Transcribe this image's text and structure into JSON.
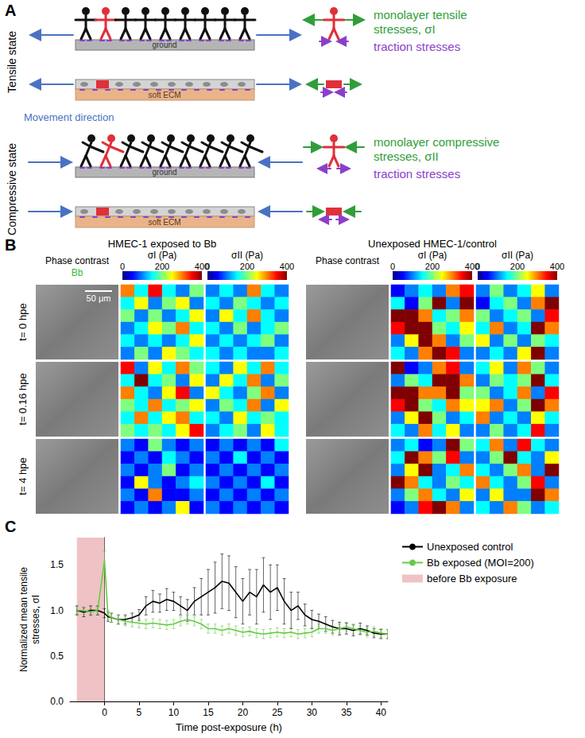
{
  "panel_a": {
    "label": "A",
    "movement_label": "Movement direction",
    "states": [
      {
        "name": "Tensile state",
        "ground": "ground",
        "ecm": "soft ECM",
        "stress_lines": [
          "monolayer tensile",
          "stresses, σI"
        ],
        "traction": "traction stresses"
      },
      {
        "name": "Compressive state",
        "ground": "ground",
        "ecm": "soft ECM",
        "stress_lines": [
          "monolayer compressive",
          "stresses, σII"
        ],
        "traction": "traction stresses"
      }
    ]
  },
  "panel_b": {
    "label": "B",
    "colorbar": {
      "range": [
        0,
        400
      ],
      "ticks": [
        0,
        200,
        400
      ]
    },
    "scale_bar": "50 μm",
    "times": [
      "t= 0 hpe",
      "t= 0.16 hpe",
      "t= 4 hpe"
    ],
    "conditions": [
      {
        "title": "HMEC-1 exposed to Bb",
        "image_label": "Phase contrast",
        "image_sublabel": "Bb",
        "stress_labels": [
          "σI (Pa)",
          "σII (Pa)"
        ],
        "maps": [
          [
            [
              [
                300,
                150,
                350,
                150,
                100,
                200
              ],
              [
                150,
                250,
                100,
                200,
                250,
                100
              ],
              [
                200,
                100,
                200,
                100,
                150,
                250
              ],
              [
                100,
                150,
                250,
                200,
                300,
                150
              ],
              [
                150,
                100,
                150,
                100,
                150,
                250
              ],
              [
                100,
                200,
                100,
                250,
                200,
                150
              ]
            ],
            [
              [
                100,
                150,
                100,
                300,
                150,
                100
              ],
              [
                150,
                100,
                200,
                150,
                100,
                150
              ],
              [
                100,
                250,
                150,
                300,
                150,
                100
              ],
              [
                150,
                100,
                200,
                100,
                150,
                200
              ],
              [
                100,
                150,
                100,
                150,
                200,
                100
              ],
              [
                150,
                100,
                150,
                100,
                100,
                150
              ]
            ]
          ],
          [
            [
              [
                350,
                100,
                250,
                150,
                300,
                200
              ],
              [
                150,
                400,
                150,
                200,
                100,
                250
              ],
              [
                300,
                150,
                100,
                250,
                350,
                100
              ],
              [
                200,
                150,
                300,
                150,
                200,
                250
              ],
              [
                150,
                300,
                150,
                250,
                300,
                150
              ],
              [
                200,
                150,
                200,
                150,
                250,
                350
              ]
            ],
            [
              [
                150,
                100,
                250,
                150,
                300,
                150
              ],
              [
                100,
                250,
                150,
                300,
                100,
                200
              ],
              [
                250,
                150,
                100,
                200,
                300,
                100
              ],
              [
                100,
                200,
                150,
                300,
                100,
                250
              ],
              [
                150,
                100,
                250,
                150,
                200,
                150
              ],
              [
                100,
                150,
                200,
                100,
                250,
                150
              ]
            ]
          ],
          [
            [
              [
                100,
                50,
                200,
                100,
                50,
                100
              ],
              [
                50,
                100,
                50,
                150,
                100,
                50
              ],
              [
                100,
                50,
                100,
                200,
                50,
                100
              ],
              [
                50,
                250,
                100,
                50,
                100,
                150
              ],
              [
                100,
                50,
                300,
                50,
                50,
                100
              ],
              [
                50,
                100,
                50,
                100,
                250,
                50
              ]
            ],
            [
              [
                50,
                100,
                50,
                100,
                50,
                150
              ],
              [
                100,
                50,
                150,
                50,
                100,
                50
              ],
              [
                50,
                100,
                50,
                100,
                50,
                100
              ],
              [
                100,
                50,
                100,
                50,
                150,
                50
              ],
              [
                50,
                100,
                50,
                100,
                50,
                100
              ],
              [
                100,
                50,
                100,
                50,
                100,
                50
              ]
            ]
          ]
        ]
      },
      {
        "title": "Unexposed HMEC-1/control",
        "image_label": "Phase contrast",
        "stress_labels": [
          "σI (Pa)",
          "σII (Pa)"
        ],
        "maps": [
          [
            [
              [
                50,
                100,
                150,
                100,
                300,
                350
              ],
              [
                150,
                50,
                200,
                400,
                100,
                400
              ],
              [
                400,
                400,
                300,
                150,
                200,
                300
              ],
              [
                350,
                400,
                400,
                200,
                150,
                250
              ],
              [
                100,
                250,
                400,
                300,
                100,
                200
              ],
              [
                150,
                100,
                300,
                400,
                350,
                100
              ]
            ],
            [
              [
                100,
                200,
                100,
                150,
                250,
                100
              ],
              [
                50,
                150,
                200,
                100,
                300,
                400
              ],
              [
                200,
                100,
                150,
                200,
                100,
                350
              ],
              [
                150,
                300,
                100,
                150,
                400,
                300
              ],
              [
                250,
                100,
                200,
                100,
                200,
                150
              ],
              [
                100,
                150,
                100,
                250,
                400,
                100
              ]
            ]
          ],
          [
            [
              [
                400,
                50,
                100,
                300,
                350,
                100
              ],
              [
                100,
                200,
                150,
                400,
                400,
                300
              ],
              [
                400,
                400,
                300,
                300,
                400,
                200
              ],
              [
                350,
                400,
                200,
                150,
                300,
                250
              ],
              [
                100,
                250,
                400,
                200,
                100,
                150
              ],
              [
                150,
                100,
                300,
                150,
                250,
                100
              ]
            ],
            [
              [
                150,
                250,
                100,
                300,
                200,
                100
              ],
              [
                100,
                200,
                150,
                200,
                400,
                150
              ],
              [
                200,
                100,
                150,
                300,
                100,
                350
              ],
              [
                250,
                300,
                100,
                200,
                400,
                300
              ],
              [
                300,
                100,
                150,
                100,
                250,
                150
              ],
              [
                100,
                200,
                100,
                150,
                350,
                100
              ]
            ]
          ],
          [
            [
              [
                100,
                150,
                50,
                100,
                400,
                200
              ],
              [
                150,
                400,
                300,
                200,
                350,
                100
              ],
              [
                100,
                250,
                400,
                100,
                150,
                300
              ],
              [
                400,
                300,
                150,
                100,
                200,
                150
              ],
              [
                100,
                200,
                300,
                150,
                100,
                250
              ],
              [
                50,
                100,
                350,
                400,
                300,
                100
              ]
            ],
            [
              [
                150,
                300,
                100,
                350,
                150,
                100
              ],
              [
                100,
                200,
                400,
                150,
                100,
                250
              ],
              [
                150,
                100,
                200,
                300,
                100,
                400
              ],
              [
                300,
                150,
                100,
                200,
                350,
                100
              ],
              [
                100,
                250,
                100,
                100,
                400,
                300
              ],
              [
                150,
                100,
                300,
                200,
                100,
                150
              ]
            ]
          ]
        ]
      }
    ]
  },
  "chart_data": {
    "panel_label": "C",
    "type": "line",
    "xlabel": "Time post-exposure (h)",
    "ylabel": [
      "Normalized mean tensile",
      "stresses, σI"
    ],
    "xlim": [
      -5,
      41
    ],
    "xticks": [
      0,
      5,
      10,
      15,
      20,
      25,
      30,
      35,
      40
    ],
    "ylim": [
      0,
      1.8
    ],
    "yticks": [
      {
        "value": 0,
        "label": "0.0"
      },
      {
        "value": 0.5,
        "label": "0.5"
      },
      {
        "value": 1,
        "label": "1.0"
      },
      {
        "value": 1.5,
        "label": "1.5"
      }
    ],
    "grid": false,
    "legend": "upper right",
    "x": [
      -4,
      -3,
      -2,
      -1,
      0,
      0.5,
      1,
      2,
      3,
      4,
      5,
      6,
      7,
      8,
      9,
      10,
      11,
      12,
      13,
      14,
      15,
      16,
      17,
      18,
      19,
      20,
      21,
      22,
      23,
      24,
      25,
      26,
      27,
      28,
      29,
      30,
      31,
      32,
      33,
      34,
      35,
      36,
      37,
      38,
      39,
      40,
      41
    ],
    "series": [
      {
        "name": "Unexposed control",
        "color": "#000000",
        "values": [
          1.0,
          0.98,
          1.0,
          1.0,
          0.97,
          0.93,
          0.92,
          0.9,
          0.9,
          0.92,
          0.95,
          1.05,
          1.1,
          1.08,
          1.12,
          1.1,
          1.05,
          1.0,
          1.1,
          1.15,
          1.2,
          1.25,
          1.32,
          1.3,
          1.2,
          1.1,
          1.2,
          1.15,
          1.28,
          1.2,
          1.25,
          1.1,
          1.0,
          1.05,
          0.95,
          0.9,
          0.88,
          0.85,
          0.82,
          0.8,
          0.8,
          0.78,
          0.8,
          0.78,
          0.75,
          0.74,
          0.74
        ],
        "errors": [
          0.05,
          0.05,
          0.05,
          0.05,
          0.05,
          0.05,
          0.05,
          0.05,
          0.05,
          0.05,
          0.06,
          0.1,
          0.12,
          0.1,
          0.12,
          0.1,
          0.1,
          0.12,
          0.15,
          0.2,
          0.25,
          0.28,
          0.3,
          0.3,
          0.28,
          0.25,
          0.25,
          0.3,
          0.3,
          0.3,
          0.25,
          0.25,
          0.2,
          0.15,
          0.12,
          0.1,
          0.08,
          0.08,
          0.07,
          0.07,
          0.06,
          0.06,
          0.06,
          0.05,
          0.05,
          0.05,
          0.05
        ]
      },
      {
        "name": "Bb exposed (MOI=200)",
        "color": "#66cc44",
        "values": [
          1.0,
          1.0,
          0.98,
          1.0,
          1.55,
          0.95,
          0.92,
          0.9,
          0.88,
          0.87,
          0.86,
          0.85,
          0.86,
          0.85,
          0.84,
          0.85,
          0.88,
          0.9,
          0.88,
          0.85,
          0.8,
          0.8,
          0.78,
          0.8,
          0.78,
          0.76,
          0.77,
          0.75,
          0.74,
          0.75,
          0.76,
          0.75,
          0.76,
          0.74,
          0.75,
          0.76,
          0.8,
          0.8,
          0.78,
          0.8,
          0.82,
          0.8,
          0.78,
          0.76,
          0.77,
          0.75,
          0.74
        ],
        "errors": [
          0.04,
          0.04,
          0.04,
          0.04,
          0.1,
          0.05,
          0.05,
          0.05,
          0.05,
          0.05,
          0.05,
          0.05,
          0.05,
          0.05,
          0.05,
          0.05,
          0.05,
          0.05,
          0.05,
          0.05,
          0.05,
          0.05,
          0.05,
          0.05,
          0.05,
          0.05,
          0.05,
          0.05,
          0.05,
          0.05,
          0.05,
          0.05,
          0.05,
          0.05,
          0.05,
          0.05,
          0.05,
          0.05,
          0.05,
          0.05,
          0.05,
          0.05,
          0.05,
          0.05,
          0.05,
          0.05,
          0.05
        ]
      }
    ],
    "shaded_region": {
      "name": "before Bb exposure",
      "color": "#efc3c6",
      "x": [
        -4,
        0
      ]
    }
  }
}
